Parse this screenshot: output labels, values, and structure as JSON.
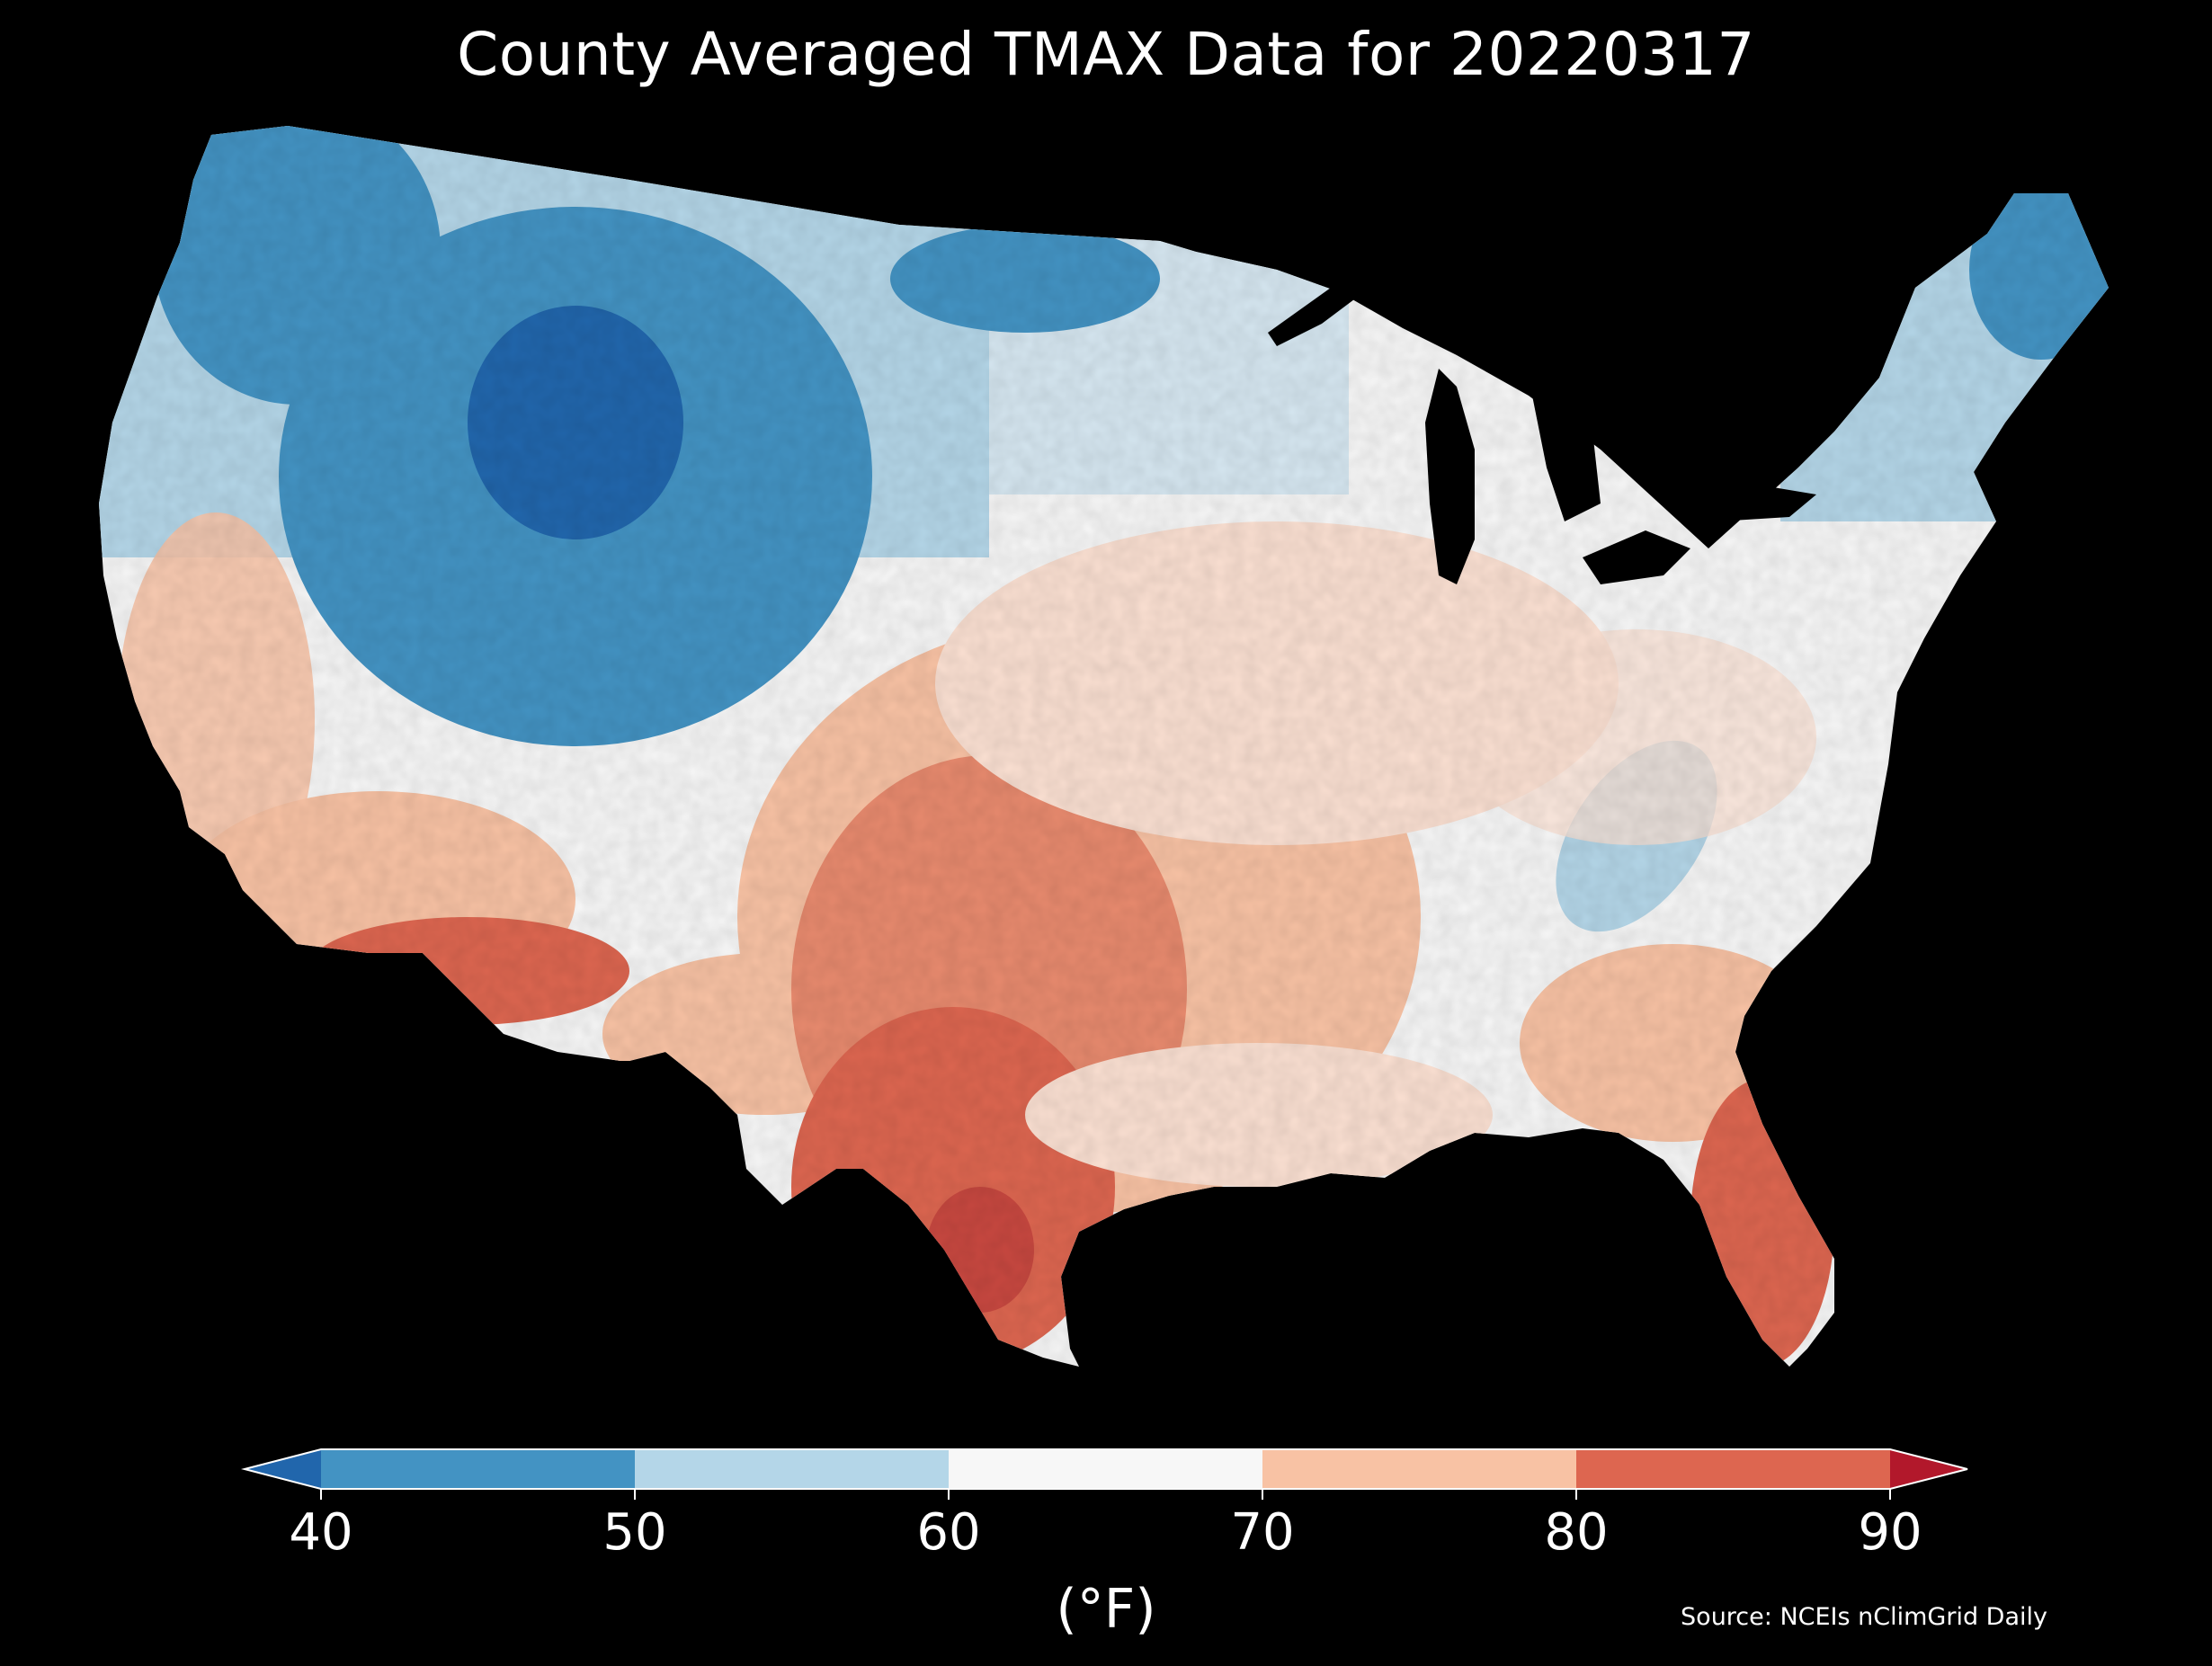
{
  "title": "County Averaged TMAX Data for 20220317",
  "source": "Source: NCEIs nClimGrid Daily",
  "colorbar": {
    "unit_label": "(°F)",
    "ticks": [
      "40",
      "50",
      "60",
      "70",
      "80",
      "90"
    ],
    "bins": [
      {
        "range": "<40",
        "color": "#2166ac"
      },
      {
        "range": "40-50",
        "color": "#4393c3"
      },
      {
        "range": "50-60",
        "color": "#b4d6e8"
      },
      {
        "range": "60-70",
        "color": "#f7f7f7"
      },
      {
        "range": "70-80",
        "color": "#f8c2a4"
      },
      {
        "range": "80-90",
        "color": "#dd6650"
      },
      {
        "range": ">90",
        "color": "#b2182b"
      }
    ],
    "extend": "both"
  },
  "map": {
    "region": "contiguous-united-states",
    "boundaries": "counties",
    "variable": "TMAX",
    "background": "#000000",
    "border_color": "#000000",
    "pattern": "coldest in northern Rockies / Wyoming-Montana; warmest in south Texas, Arizona and Florida"
  }
}
